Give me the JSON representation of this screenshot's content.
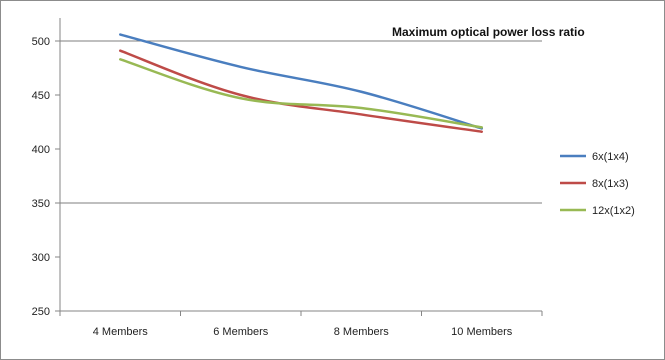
{
  "chart_data": {
    "type": "line",
    "title": "Maximum optical power loss ratio",
    "xlabel": "",
    "ylabel": "",
    "categories": [
      "4 Members",
      "6 Members",
      "8 Members",
      "10 Members"
    ],
    "ylim": [
      250,
      500
    ],
    "yticks": [
      250,
      300,
      350,
      400,
      450,
      500
    ],
    "gridlines": [
      350,
      500
    ],
    "legend_position": "right",
    "series": [
      {
        "name": "6x(1x4)",
        "color": "#4a7ebf",
        "values": [
          506,
          476,
          453,
          419
        ]
      },
      {
        "name": "8x(1x3)",
        "color": "#be4b48",
        "values": [
          491,
          450,
          432,
          416
        ]
      },
      {
        "name": "12x(1x2)",
        "color": "#98b954",
        "values": [
          483,
          447,
          438,
          420
        ]
      }
    ]
  }
}
